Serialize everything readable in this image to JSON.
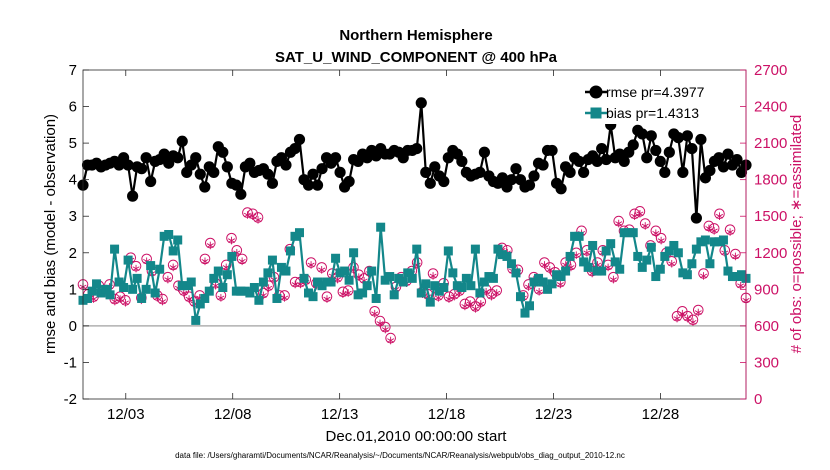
{
  "chart_data": {
    "type": "line",
    "title_line1": "Northern Hemisphere",
    "title_line2": "SAT_U_WIND_COMPONENT @ 400 hPa",
    "xlabel": "Dec.01,2010 00:00:00 start",
    "ylabel_left": "rmse and bias (model - observation)",
    "ylabel_right": "# of obs: o=possible; ∗=assimilated",
    "footnote": "data file: /Users/gharamti/Documents/NCAR/Reanalysis/~/Documents/NCAR/Reanalysis/webpub/obs_diag_output_2010-12.nc",
    "xlim": [
      1,
      32
    ],
    "ylim_left": [
      -2,
      7
    ],
    "ylim_right": [
      0,
      2700
    ],
    "x_ticks": [
      3,
      8,
      13,
      18,
      23,
      28
    ],
    "x_tick_labels": [
      "12/03",
      "12/08",
      "12/13",
      "12/18",
      "12/23",
      "12/28"
    ],
    "y_ticks_left": [
      "-2",
      "-1",
      "0",
      "1",
      "2",
      "3",
      "4",
      "5",
      "6",
      "7"
    ],
    "y_ticks_right": [
      "0",
      "300",
      "600",
      "900",
      "1200",
      "1500",
      "1800",
      "2100",
      "2400",
      "2700"
    ],
    "colors": {
      "rmse": "#000000",
      "bias": "#13878a",
      "obs": "#cc1166",
      "zero": "#b0b0b0"
    },
    "series": [
      {
        "name": "rmse",
        "legend": "rmse pr=4.3977",
        "values": [
          3.85,
          4.4,
          4.4,
          4.45,
          4.35,
          4.4,
          4.45,
          4.5,
          4.4,
          4.6,
          4.4,
          3.55,
          4.35,
          4.3,
          4.6,
          3.95,
          4.5,
          4.55,
          4.7,
          4.45,
          4.65,
          4.6,
          5.05,
          4.2,
          4.4,
          4.6,
          4.15,
          3.8,
          4.35,
          4.2,
          4.9,
          4.75,
          4.35,
          3.9,
          3.85,
          3.6,
          4.35,
          4.45,
          4.2,
          4.25,
          4.3,
          4.15,
          3.9,
          4.5,
          4.6,
          4.4,
          4.75,
          4.85,
          5.1,
          4.0,
          3.85,
          4.15,
          3.85,
          4.3,
          4.6,
          4.45,
          4.6,
          4.2,
          3.8,
          3.95,
          4.55,
          4.5,
          4.7,
          4.6,
          4.8,
          4.65,
          4.85,
          4.7,
          4.7,
          4.8,
          4.75,
          4.6,
          4.8,
          4.8,
          4.85,
          6.1,
          4.2,
          3.9,
          4.35,
          4.1,
          3.95,
          4.6,
          4.8,
          4.7,
          4.5,
          4.2,
          4.1,
          4.15,
          4.2,
          4.75,
          4.1,
          3.95,
          3.9,
          4.05,
          3.8,
          4.0,
          4.3,
          4.0,
          3.8,
          3.85,
          4.1,
          4.45,
          4.4,
          4.8,
          4.8,
          3.9,
          3.75,
          4.35,
          4.2,
          4.6,
          4.5,
          4.2,
          4.55,
          4.65,
          4.5,
          4.85,
          4.55,
          5.5,
          4.6,
          4.7,
          4.5,
          4.75,
          4.95,
          5.35,
          5.25,
          4.6,
          5.2,
          4.8,
          4.5,
          4.2,
          4.75,
          5.25,
          5.15,
          4.2,
          5.2,
          4.85,
          2.95,
          5.1,
          4.05,
          4.25,
          4.5,
          4.6,
          4.35,
          4.7,
          4.4,
          4.55,
          4.2,
          4.4
        ]
      },
      {
        "name": "bias",
        "legend": "bias pr=1.4313",
        "values": [
          0.7,
          0.75,
          0.95,
          1.15,
          0.9,
          1.0,
          0.85,
          2.1,
          1.2,
          1.05,
          1.8,
          1.0,
          1.3,
          0.75,
          1.0,
          1.65,
          0.9,
          1.55,
          2.45,
          2.5,
          2.05,
          2.35,
          1.1,
          1.1,
          1.2,
          0.15,
          0.6,
          0.75,
          0.95,
          1.3,
          1.5,
          1.05,
          1.4,
          1.9,
          0.95,
          0.95,
          0.95,
          0.9,
          1.05,
          0.7,
          1.2,
          1.45,
          1.8,
          0.75,
          1.6,
          1.5,
          2.05,
          2.45,
          2.55,
          1.3,
          0.9,
          0.8,
          1.2,
          1.1,
          1.2,
          1.2,
          1.85,
          1.45,
          1.5,
          1.25,
          2.0,
          0.85,
          0.9,
          1.1,
          1.5,
          0.75,
          2.7,
          1.25,
          1.35,
          0.85,
          1.3,
          1.2,
          1.45,
          1.3,
          2.1,
          0.9,
          1.15,
          0.65,
          1.1,
          0.95,
          1.05,
          2.05,
          1.45,
          1.1,
          1.05,
          1.3,
          1.1,
          2.1,
          0.9,
          1.2,
          1.35,
          1.3,
          2.1,
          1.95,
          1.9,
          1.7,
          1.45,
          0.8,
          0.35,
          0.55,
          1.2,
          1.3,
          1.2,
          1.0,
          1.15,
          1.4,
          1.35,
          1.5,
          1.9,
          2.45,
          2.45,
          1.75,
          1.6,
          2.2,
          1.5,
          1.5,
          2.05,
          2.25,
          1.75,
          1.55,
          2.55,
          2.55,
          2.55,
          1.9,
          1.6,
          1.8,
          2.15,
          1.35,
          1.55,
          1.9,
          2.05,
          2.2,
          2.0,
          1.45,
          1.4,
          1.7,
          2.1,
          2.3,
          2.35,
          1.7,
          2.3,
          2.3,
          2.35,
          1.5,
          1.35,
          1.35,
          1.4,
          1.3
        ]
      },
      {
        "name": "obs_possible",
        "values": [
          940,
          860,
          840,
          930,
          890,
          940,
          820,
          840,
          810,
          1160,
          1090,
          830,
          1150,
          1050,
          850,
          820,
          1000,
          1100,
          930,
          890,
          840,
          800,
          850,
          1150,
          1280,
          950,
          850,
          1100,
          1320,
          1220,
          1150,
          1530,
          1520,
          1490,
          870,
          930,
          1000,
          850,
          850,
          1230,
          960,
          960,
          980,
          1120,
          950,
          1080,
          840,
          1030,
          1000,
          880,
          890,
          1080,
          1020,
          990,
          1050,
          720,
          640,
          590,
          500,
          920,
          1000,
          970,
          1050,
          1120,
          880,
          860,
          1030,
          850,
          950,
          840,
          860,
          890,
          780,
          800,
          760,
          800,
          900,
          860,
          890,
          1240,
          1220,
          1070,
          1060,
          850,
          940,
          1000,
          900,
          1120,
          1080,
          1040,
          960,
          1120,
          1100,
          1200,
          1380,
          1220,
          1050,
          1120,
          1220,
          1100,
          1000,
          1460,
          1380,
          1390,
          1520,
          1540,
          1440,
          1260,
          1380,
          1320,
          1200,
          1130,
          680,
          720,
          680,
          650,
          730,
          1030,
          1420,
          1400,
          1520,
          1220,
          1390,
          1190,
          950,
          830
        ]
      },
      {
        "name": "obs_assimilated",
        "values": [
          920,
          840,
          820,
          910,
          870,
          920,
          800,
          820,
          790,
          1140,
          1070,
          810,
          1130,
          1030,
          830,
          800,
          980,
          1080,
          910,
          870,
          820,
          780,
          830,
          1130,
          1260,
          930,
          830,
          1080,
          1300,
          1200,
          1130,
          1510,
          1500,
          1470,
          850,
          910,
          980,
          830,
          830,
          1210,
          940,
          940,
          960,
          1100,
          930,
          1060,
          820,
          1010,
          980,
          860,
          870,
          1060,
          1000,
          970,
          1030,
          700,
          620,
          570,
          480,
          900,
          980,
          950,
          1030,
          1100,
          860,
          840,
          1010,
          830,
          930,
          820,
          840,
          870,
          760,
          780,
          740,
          780,
          880,
          840,
          870,
          1220,
          1200,
          1050,
          1040,
          830,
          920,
          980,
          880,
          1100,
          1060,
          1020,
          940,
          1100,
          1080,
          1180,
          1360,
          1200,
          1030,
          1100,
          1200,
          1080,
          980,
          1440,
          1360,
          1370,
          1500,
          1520,
          1420,
          1240,
          1360,
          1300,
          1180,
          1110,
          660,
          700,
          660,
          630,
          710,
          1010,
          1400,
          1380,
          1500,
          1200,
          1370,
          1170,
          930,
          810
        ]
      }
    ]
  }
}
